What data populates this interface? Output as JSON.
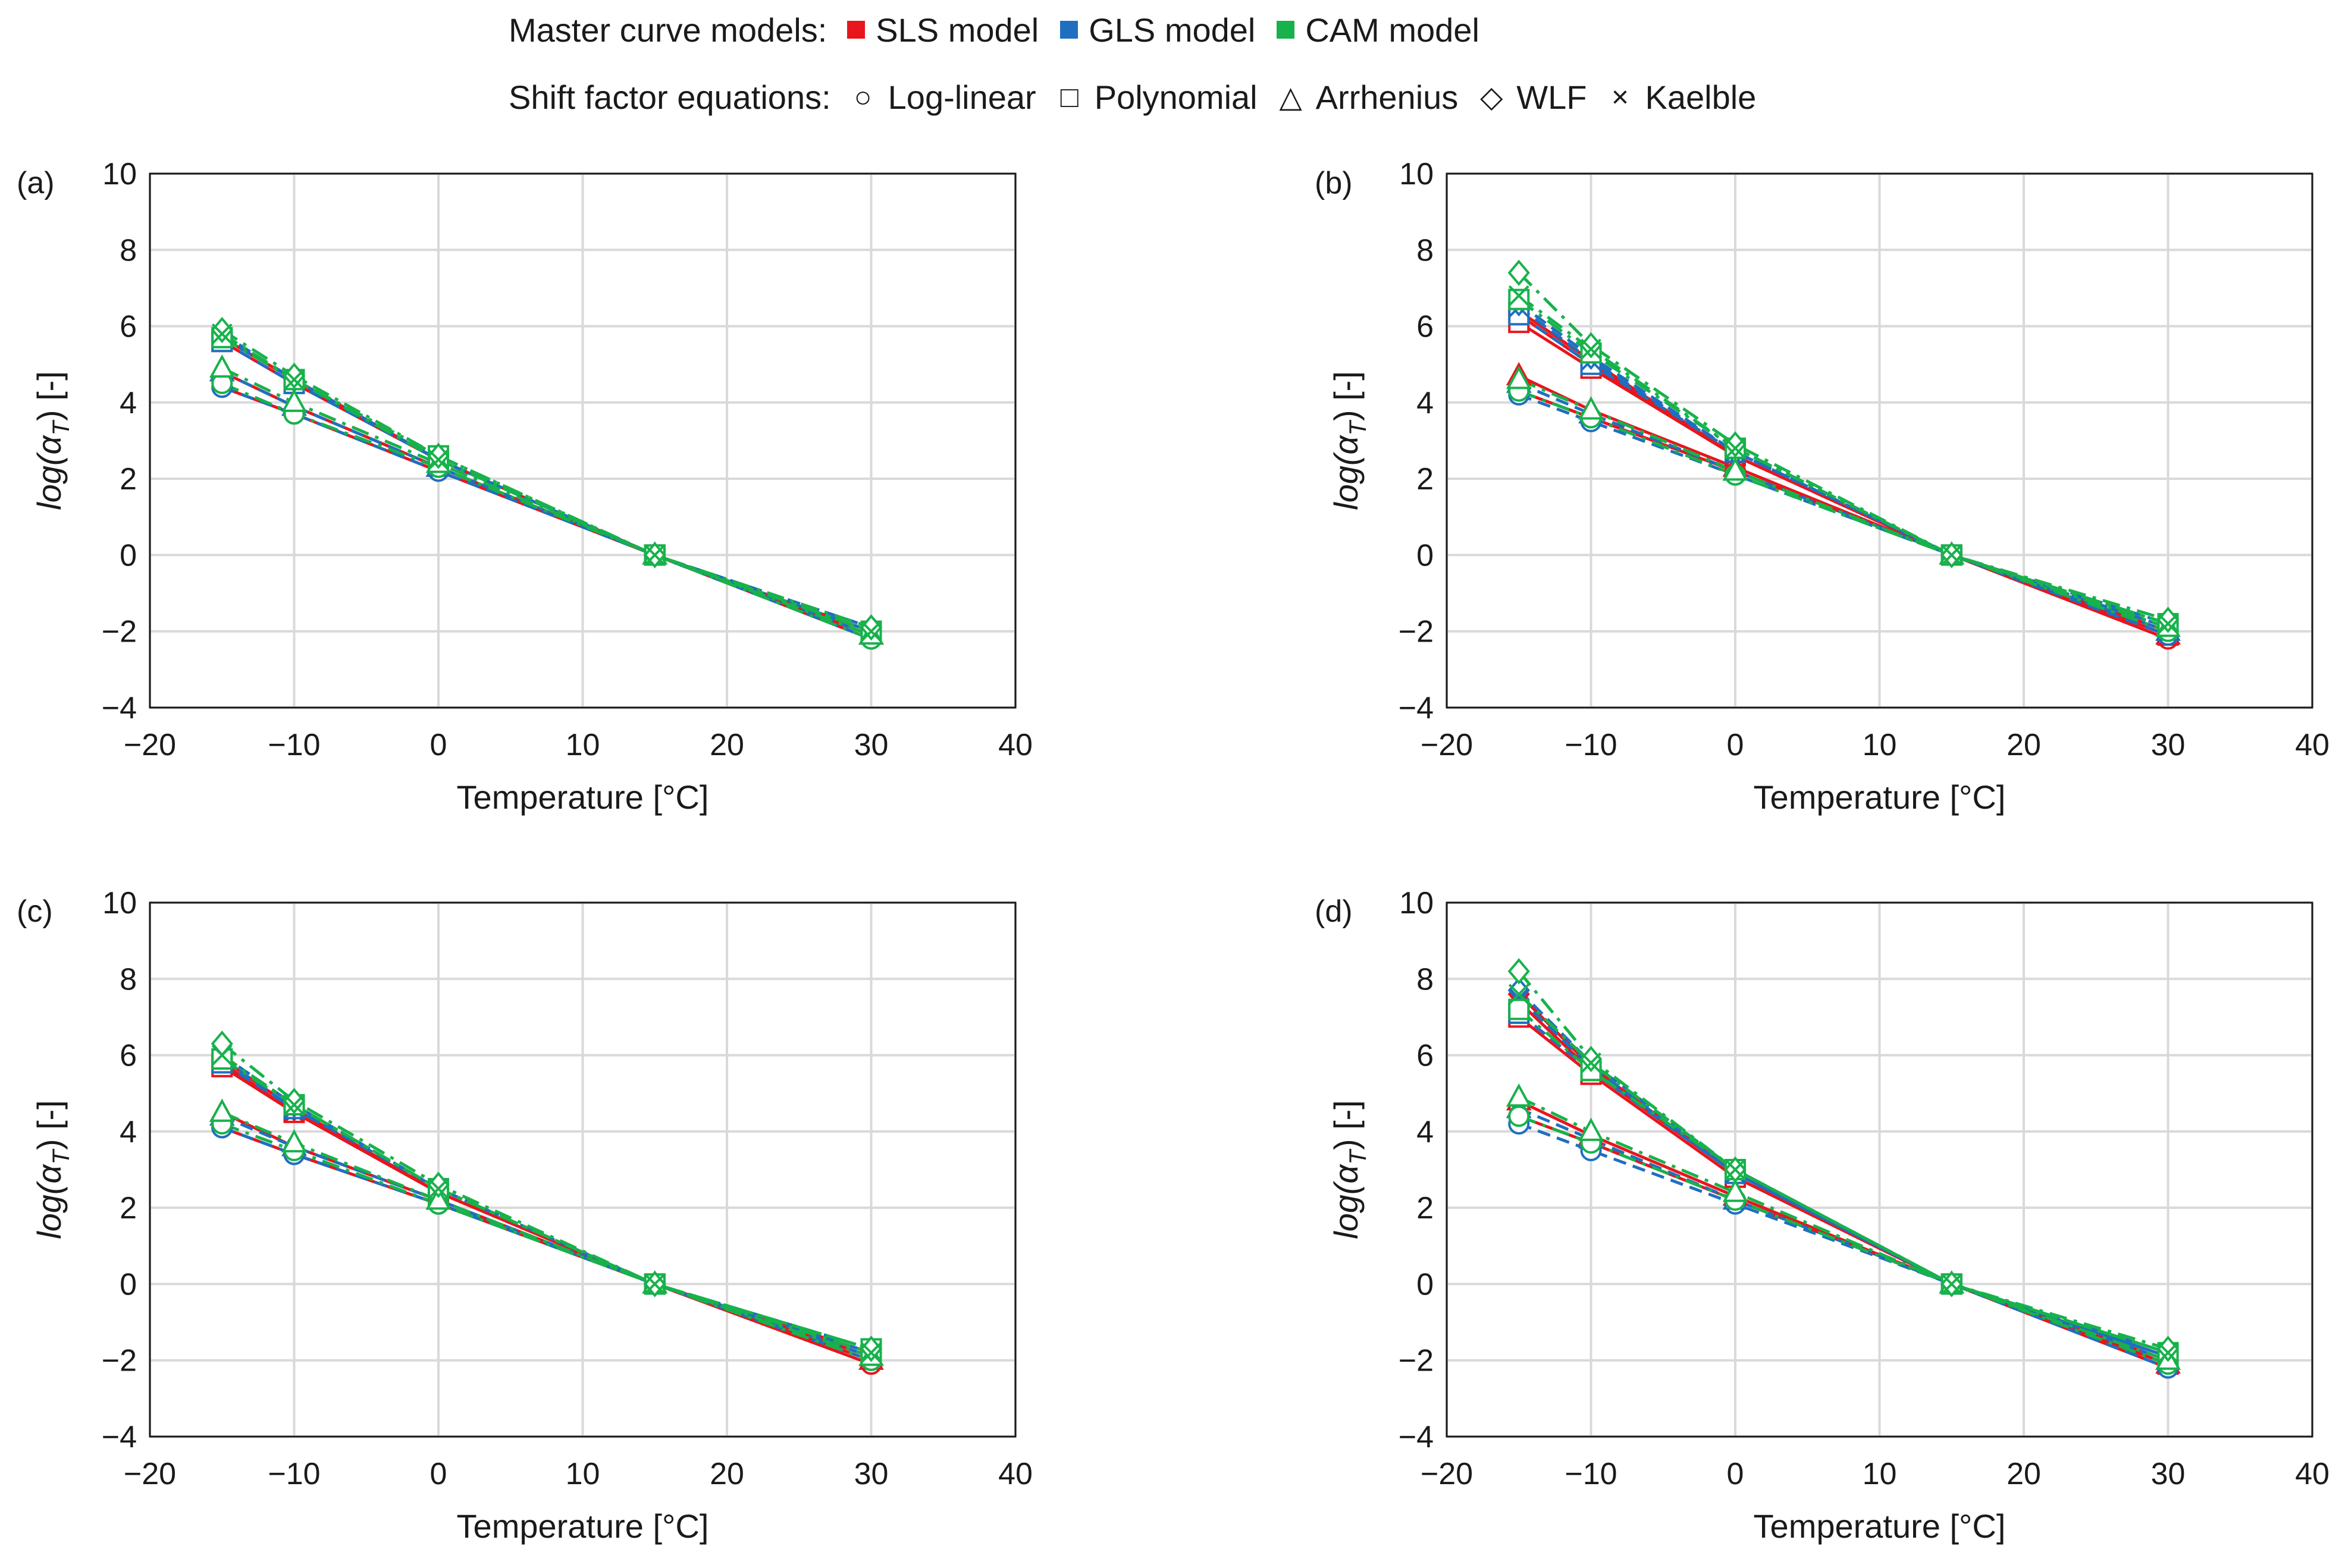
{
  "legend": {
    "model_title": "Master curve models:",
    "models": [
      {
        "label": "SLS model",
        "color": "#e8151c"
      },
      {
        "label": "GLS model",
        "color": "#1f6fc0"
      },
      {
        "label": "CAM model",
        "color": "#17b24b"
      }
    ],
    "shift_title": "Shift factor equations:",
    "equations": [
      {
        "label": "Log-linear",
        "symbol": "circle",
        "glyph": "○"
      },
      {
        "label": "Polynomial",
        "symbol": "square",
        "glyph": "□"
      },
      {
        "label": "Arrhenius",
        "symbol": "triangle",
        "glyph": "△"
      },
      {
        "label": "WLF",
        "symbol": "diamond",
        "glyph": "◇"
      },
      {
        "label": "Kaelble",
        "symbol": "cross",
        "glyph": "×"
      }
    ]
  },
  "chart_data": [
    {
      "panel": "(a)",
      "type": "line",
      "xlabel": "Temperature [°C]",
      "ylabel": "log(α",
      "ylabel_sub": "T",
      "ylabel_end": ") [-]",
      "xlim": [
        -20,
        40
      ],
      "ylim": [
        -4,
        10
      ],
      "xticks": [
        "−20",
        "−10",
        "0",
        "10",
        "20",
        "30",
        "40"
      ],
      "yticks": [
        "−4",
        "−2",
        "0",
        "2",
        "4",
        "6",
        "8",
        "10"
      ],
      "x": [
        -15,
        -10,
        0,
        15,
        30
      ],
      "series": [
        {
          "model": "SLS",
          "equation": "Log-linear",
          "values": [
            4.4,
            3.7,
            2.2,
            0,
            -2.2
          ]
        },
        {
          "model": "SLS",
          "equation": "Polynomial",
          "values": [
            5.6,
            4.5,
            2.5,
            0,
            -2.0
          ]
        },
        {
          "model": "SLS",
          "equation": "Arrhenius",
          "values": [
            4.8,
            3.9,
            2.3,
            0,
            -2.1
          ]
        },
        {
          "model": "SLS",
          "equation": "WLF",
          "values": [
            5.7,
            4.6,
            2.5,
            0,
            -2.0
          ]
        },
        {
          "model": "SLS",
          "equation": "Kaelble",
          "values": [
            5.7,
            4.6,
            2.5,
            0,
            -2.0
          ]
        },
        {
          "model": "GLS",
          "equation": "Log-linear",
          "values": [
            4.4,
            3.7,
            2.2,
            0,
            -2.2
          ]
        },
        {
          "model": "GLS",
          "equation": "Polynomial",
          "values": [
            5.6,
            4.5,
            2.5,
            0,
            -2.0
          ]
        },
        {
          "model": "GLS",
          "equation": "Arrhenius",
          "values": [
            4.8,
            3.9,
            2.3,
            0,
            -2.1
          ]
        },
        {
          "model": "GLS",
          "equation": "WLF",
          "values": [
            5.8,
            4.6,
            2.5,
            0,
            -1.9
          ]
        },
        {
          "model": "GLS",
          "equation": "Kaelble",
          "values": [
            5.7,
            4.6,
            2.5,
            0,
            -2.0
          ]
        },
        {
          "model": "CAM",
          "equation": "Log-linear",
          "values": [
            4.5,
            3.7,
            2.3,
            0,
            -2.2
          ]
        },
        {
          "model": "CAM",
          "equation": "Polynomial",
          "values": [
            5.7,
            4.6,
            2.6,
            0,
            -2.0
          ]
        },
        {
          "model": "CAM",
          "equation": "Arrhenius",
          "values": [
            4.9,
            4.0,
            2.4,
            0,
            -2.1
          ]
        },
        {
          "model": "CAM",
          "equation": "WLF",
          "values": [
            5.9,
            4.7,
            2.6,
            0,
            -1.9
          ]
        },
        {
          "model": "CAM",
          "equation": "Kaelble",
          "values": [
            5.8,
            4.6,
            2.5,
            0,
            -2.0
          ]
        }
      ]
    },
    {
      "panel": "(b)",
      "type": "line",
      "xlabel": "Temperature [°C]",
      "ylabel": "log(α",
      "ylabel_sub": "T",
      "ylabel_end": ") [-]",
      "xlim": [
        -20,
        40
      ],
      "ylim": [
        -4,
        10
      ],
      "xticks": [
        "−20",
        "−10",
        "0",
        "10",
        "20",
        "30",
        "40"
      ],
      "yticks": [
        "−4",
        "−2",
        "0",
        "2",
        "4",
        "6",
        "8",
        "10"
      ],
      "x": [
        -15,
        -10,
        0,
        15,
        30
      ],
      "series": [
        {
          "model": "SLS",
          "equation": "Log-linear",
          "values": [
            4.3,
            3.6,
            2.2,
            0,
            -2.2
          ]
        },
        {
          "model": "SLS",
          "equation": "Polynomial",
          "values": [
            6.1,
            4.9,
            2.6,
            0,
            -2.1
          ]
        },
        {
          "model": "SLS",
          "equation": "Arrhenius",
          "values": [
            4.7,
            3.8,
            2.3,
            0,
            -2.1
          ]
        },
        {
          "model": "SLS",
          "equation": "WLF",
          "values": [
            6.4,
            5.1,
            2.6,
            0,
            -2.0
          ]
        },
        {
          "model": "SLS",
          "equation": "Kaelble",
          "values": [
            6.3,
            5.0,
            2.6,
            0,
            -2.0
          ]
        },
        {
          "model": "GLS",
          "equation": "Log-linear",
          "values": [
            4.2,
            3.5,
            2.1,
            0,
            -2.1
          ]
        },
        {
          "model": "GLS",
          "equation": "Polynomial",
          "values": [
            6.3,
            5.0,
            2.7,
            0,
            -1.9
          ]
        },
        {
          "model": "GLS",
          "equation": "Arrhenius",
          "values": [
            4.5,
            3.7,
            2.2,
            0,
            -2.0
          ]
        },
        {
          "model": "GLS",
          "equation": "WLF",
          "values": [
            6.6,
            5.2,
            2.7,
            0,
            -1.8
          ]
        },
        {
          "model": "GLS",
          "equation": "Kaelble",
          "values": [
            6.5,
            5.1,
            2.7,
            0,
            -1.9
          ]
        },
        {
          "model": "CAM",
          "equation": "Log-linear",
          "values": [
            4.3,
            3.6,
            2.1,
            0,
            -2.0
          ]
        },
        {
          "model": "CAM",
          "equation": "Polynomial",
          "values": [
            6.7,
            5.3,
            2.8,
            0,
            -1.8
          ]
        },
        {
          "model": "CAM",
          "equation": "Arrhenius",
          "values": [
            4.6,
            3.8,
            2.2,
            0,
            -1.9
          ]
        },
        {
          "model": "CAM",
          "equation": "WLF",
          "values": [
            7.4,
            5.5,
            2.9,
            0,
            -1.7
          ]
        },
        {
          "model": "CAM",
          "equation": "Kaelble",
          "values": [
            6.8,
            5.4,
            2.8,
            0,
            -1.8
          ]
        }
      ]
    },
    {
      "panel": "(c)",
      "type": "line",
      "xlabel": "Temperature [°C]",
      "ylabel": "log(α",
      "ylabel_sub": "T",
      "ylabel_end": ") [-]",
      "xlim": [
        -20,
        40
      ],
      "ylim": [
        -4,
        10
      ],
      "xticks": [
        "−20",
        "−10",
        "0",
        "10",
        "20",
        "30",
        "40"
      ],
      "yticks": [
        "−4",
        "−2",
        "0",
        "2",
        "4",
        "6",
        "8",
        "10"
      ],
      "x": [
        -15,
        -10,
        0,
        15,
        30
      ],
      "series": [
        {
          "model": "SLS",
          "equation": "Log-linear",
          "values": [
            4.1,
            3.4,
            2.1,
            0,
            -2.1
          ]
        },
        {
          "model": "SLS",
          "equation": "Polynomial",
          "values": [
            5.7,
            4.5,
            2.4,
            0,
            -1.9
          ]
        },
        {
          "model": "SLS",
          "equation": "Arrhenius",
          "values": [
            4.5,
            3.6,
            2.2,
            0,
            -2.0
          ]
        },
        {
          "model": "SLS",
          "equation": "WLF",
          "values": [
            5.9,
            4.6,
            2.4,
            0,
            -1.8
          ]
        },
        {
          "model": "SLS",
          "equation": "Kaelble",
          "values": [
            5.8,
            4.5,
            2.4,
            0,
            -1.9
          ]
        },
        {
          "model": "GLS",
          "equation": "Log-linear",
          "values": [
            4.1,
            3.4,
            2.1,
            0,
            -2.0
          ]
        },
        {
          "model": "GLS",
          "equation": "Polynomial",
          "values": [
            5.8,
            4.6,
            2.5,
            0,
            -1.8
          ]
        },
        {
          "model": "GLS",
          "equation": "Arrhenius",
          "values": [
            4.4,
            3.6,
            2.2,
            0,
            -1.9
          ]
        },
        {
          "model": "GLS",
          "equation": "WLF",
          "values": [
            6.0,
            4.7,
            2.5,
            0,
            -1.7
          ]
        },
        {
          "model": "GLS",
          "equation": "Kaelble",
          "values": [
            5.9,
            4.6,
            2.5,
            0,
            -1.8
          ]
        },
        {
          "model": "CAM",
          "equation": "Log-linear",
          "values": [
            4.2,
            3.5,
            2.1,
            0,
            -2.0
          ]
        },
        {
          "model": "CAM",
          "equation": "Polynomial",
          "values": [
            5.9,
            4.7,
            2.5,
            0,
            -1.7
          ]
        },
        {
          "model": "CAM",
          "equation": "Arrhenius",
          "values": [
            4.5,
            3.7,
            2.2,
            0,
            -1.9
          ]
        },
        {
          "model": "CAM",
          "equation": "WLF",
          "values": [
            6.3,
            4.8,
            2.6,
            0,
            -1.7
          ]
        },
        {
          "model": "CAM",
          "equation": "Kaelble",
          "values": [
            6.0,
            4.7,
            2.5,
            0,
            -1.8
          ]
        }
      ]
    },
    {
      "panel": "(d)",
      "type": "line",
      "xlabel": "Temperature [°C]",
      "ylabel": "log(α",
      "ylabel_sub": "T",
      "ylabel_end": ") [-]",
      "xlim": [
        -20,
        40
      ],
      "ylim": [
        -4,
        10
      ],
      "xticks": [
        "−20",
        "−10",
        "0",
        "10",
        "20",
        "30",
        "40"
      ],
      "yticks": [
        "−4",
        "−2",
        "0",
        "2",
        "4",
        "6",
        "8",
        "10"
      ],
      "x": [
        -15,
        -10,
        0,
        15,
        30
      ],
      "series": [
        {
          "model": "SLS",
          "equation": "Log-linear",
          "values": [
            4.4,
            3.7,
            2.2,
            0,
            -2.2
          ]
        },
        {
          "model": "SLS",
          "equation": "Polynomial",
          "values": [
            7.0,
            5.5,
            2.8,
            0,
            -2.1
          ]
        },
        {
          "model": "SLS",
          "equation": "Arrhenius",
          "values": [
            4.8,
            3.9,
            2.3,
            0,
            -2.1
          ]
        },
        {
          "model": "SLS",
          "equation": "WLF",
          "values": [
            7.6,
            5.7,
            2.9,
            0,
            -2.0
          ]
        },
        {
          "model": "SLS",
          "equation": "Kaelble",
          "values": [
            7.4,
            5.6,
            2.9,
            0,
            -2.0
          ]
        },
        {
          "model": "GLS",
          "equation": "Log-linear",
          "values": [
            4.2,
            3.5,
            2.1,
            0,
            -2.2
          ]
        },
        {
          "model": "GLS",
          "equation": "Polynomial",
          "values": [
            7.1,
            5.6,
            2.9,
            0,
            -1.9
          ]
        },
        {
          "model": "GLS",
          "equation": "Arrhenius",
          "values": [
            4.6,
            3.8,
            2.2,
            0,
            -2.0
          ]
        },
        {
          "model": "GLS",
          "equation": "WLF",
          "values": [
            7.7,
            5.8,
            3.0,
            0,
            -1.8
          ]
        },
        {
          "model": "GLS",
          "equation": "Kaelble",
          "values": [
            7.5,
            5.7,
            2.9,
            0,
            -1.9
          ]
        },
        {
          "model": "CAM",
          "equation": "Log-linear",
          "values": [
            4.4,
            3.7,
            2.2,
            0,
            -2.1
          ]
        },
        {
          "model": "CAM",
          "equation": "Polynomial",
          "values": [
            7.2,
            5.6,
            3.0,
            0,
            -1.8
          ]
        },
        {
          "model": "CAM",
          "equation": "Arrhenius",
          "values": [
            4.9,
            4.0,
            2.4,
            0,
            -2.0
          ]
        },
        {
          "model": "CAM",
          "equation": "WLF",
          "values": [
            8.2,
            5.9,
            3.0,
            0,
            -1.7
          ]
        },
        {
          "model": "CAM",
          "equation": "Kaelble",
          "values": [
            7.6,
            5.8,
            3.0,
            0,
            -1.8
          ]
        }
      ]
    }
  ]
}
